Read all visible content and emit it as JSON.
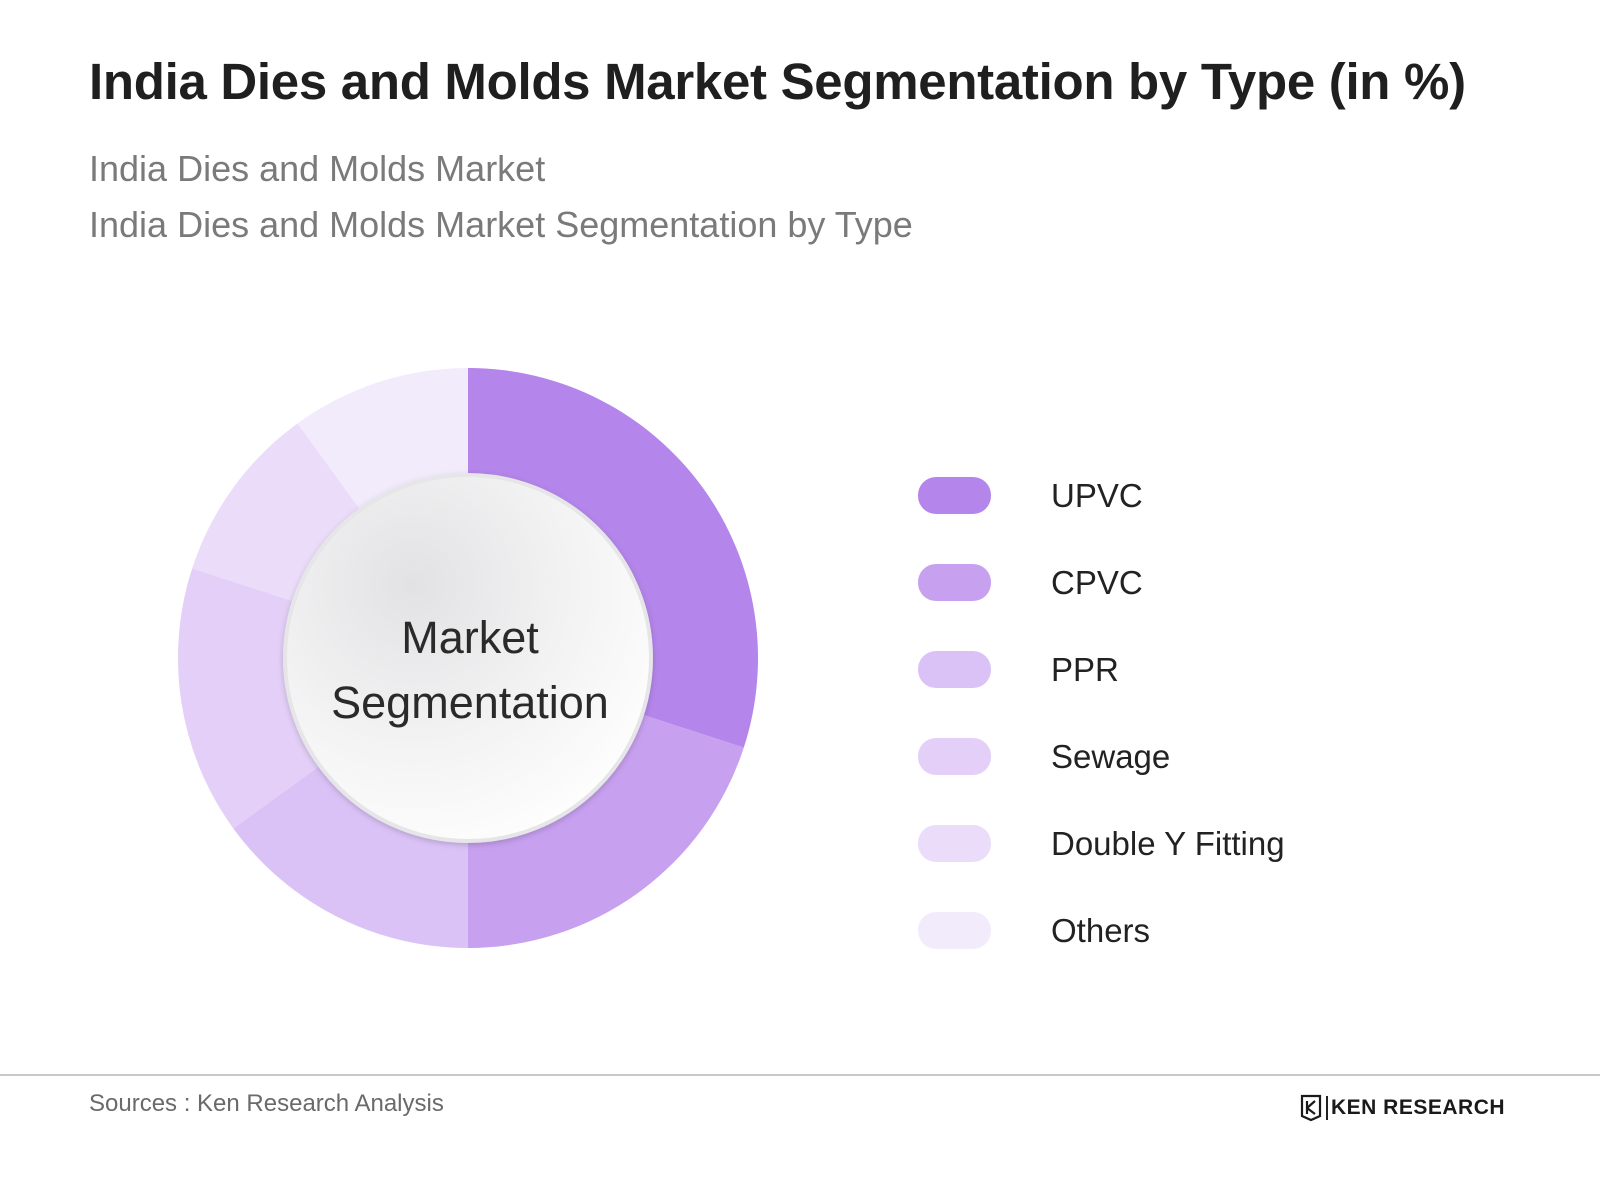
{
  "header": {
    "title": "India Dies and Molds Market Segmentation by Type (in %)",
    "subtitle_line1": "India Dies and Molds Market",
    "subtitle_line2": "India Dies and Molds Market Segmentation by Type"
  },
  "chart_data": {
    "type": "pie",
    "donut": true,
    "center_label_line1": "Market",
    "center_label_line2": "Segmentation",
    "categories": [
      "UPVC",
      "CPVC",
      "PPR",
      "Sewage",
      "Double Y Fitting",
      "Others"
    ],
    "values": [
      30,
      20,
      15,
      15,
      10,
      10
    ],
    "colors": [
      "#b485ea",
      "#c7a0ef",
      "#dac2f7",
      "#e3cff7",
      "#ebdcfa",
      "#f2ebfc"
    ],
    "legend_position": "right"
  },
  "footer": {
    "sources": "Sources : Ken Research Analysis",
    "brand": "KEN RESEARCH"
  }
}
